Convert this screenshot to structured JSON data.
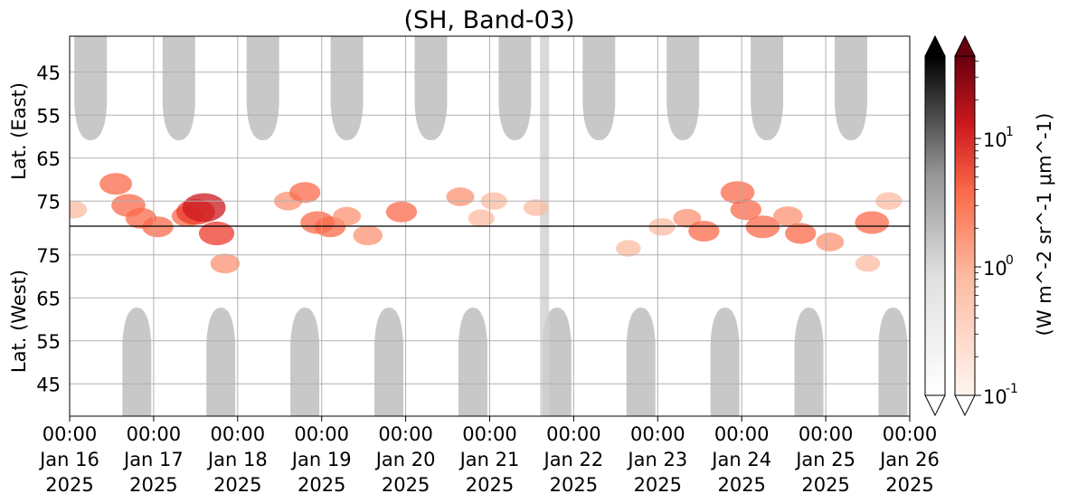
{
  "chart_data": {
    "type": "heatmap",
    "title": "(SH, Band-03)",
    "upper_panel": {
      "ylabel": "Lat. (East)",
      "yticks": [
        "45",
        "55",
        "65",
        "75"
      ]
    },
    "lower_panel": {
      "ylabel": "Lat. (West)",
      "yticks": [
        "75",
        "65",
        "55",
        "45"
      ]
    },
    "x_ticks": [
      {
        "time": "00:00",
        "date": "Jan 16",
        "year": "2025"
      },
      {
        "time": "00:00",
        "date": "Jan 17",
        "year": "2025"
      },
      {
        "time": "00:00",
        "date": "Jan 18",
        "year": "2025"
      },
      {
        "time": "00:00",
        "date": "Jan 19",
        "year": "2025"
      },
      {
        "time": "00:00",
        "date": "Jan 20",
        "year": "2025"
      },
      {
        "time": "00:00",
        "date": "Jan 21",
        "year": "2025"
      },
      {
        "time": "00:00",
        "date": "Jan 22",
        "year": "2025"
      },
      {
        "time": "00:00",
        "date": "Jan 23",
        "year": "2025"
      },
      {
        "time": "00:00",
        "date": "Jan 24",
        "year": "2025"
      },
      {
        "time": "00:00",
        "date": "Jan 25",
        "year": "2025"
      },
      {
        "time": "00:00",
        "date": "Jan 26",
        "year": "2025"
      }
    ],
    "x_range": [
      "2025-01-16 00:00",
      "2025-01-26 00:00"
    ],
    "grid": true,
    "colorbar": {
      "scale": "log",
      "ticks": [
        "10^1",
        "10^0",
        "10^-1"
      ],
      "label": "(W m^-2 sr^-1 μm^-1)",
      "cmaps": [
        "Greys",
        "Reds"
      ],
      "extend": "both"
    },
    "gray_day_regions": {
      "upper_days": [
        0.25,
        1.3,
        2.3,
        3.3,
        4.3,
        5.3,
        6.3,
        7.3,
        8.3,
        9.3
      ],
      "lower_days": [
        0.8,
        1.8,
        2.8,
        3.8,
        4.8,
        5.8,
        6.8,
        7.8,
        8.8,
        9.8
      ]
    },
    "red_features": [
      {
        "day": 0.05,
        "lat": 77,
        "panel": "east",
        "v": 0.3
      },
      {
        "day": 0.55,
        "lat": 71,
        "panel": "east",
        "v": 0.5
      },
      {
        "day": 0.7,
        "lat": 76,
        "panel": "east",
        "v": 0.55
      },
      {
        "day": 0.85,
        "lat": 79,
        "panel": "east",
        "v": 0.45
      },
      {
        "day": 1.05,
        "lat": 81,
        "panel": "east",
        "v": 0.45
      },
      {
        "day": 1.4,
        "lat": 84,
        "panel": "west",
        "v": 0.45
      },
      {
        "day": 1.5,
        "lat": 85,
        "panel": "west",
        "v": 0.7
      },
      {
        "day": 1.6,
        "lat": 86,
        "panel": "west",
        "v": 0.85
      },
      {
        "day": 1.75,
        "lat": 80,
        "panel": "west",
        "v": 0.6
      },
      {
        "day": 1.85,
        "lat": 73,
        "panel": "west",
        "v": 0.4
      },
      {
        "day": 2.6,
        "lat": 75,
        "panel": "east",
        "v": 0.35
      },
      {
        "day": 2.8,
        "lat": 73,
        "panel": "east",
        "v": 0.45
      },
      {
        "day": 2.95,
        "lat": 80,
        "panel": "east",
        "v": 0.55
      },
      {
        "day": 3.1,
        "lat": 81,
        "panel": "east",
        "v": 0.45
      },
      {
        "day": 3.3,
        "lat": 84,
        "panel": "west",
        "v": 0.35
      },
      {
        "day": 3.55,
        "lat": 83,
        "panel": "east",
        "v": 0.4
      },
      {
        "day": 3.95,
        "lat": 85,
        "panel": "west",
        "v": 0.45
      },
      {
        "day": 4.65,
        "lat": 74,
        "panel": "east",
        "v": 0.35
      },
      {
        "day": 4.9,
        "lat": 79,
        "panel": "east",
        "v": 0.3
      },
      {
        "day": 5.05,
        "lat": 75,
        "panel": "east",
        "v": 0.3
      },
      {
        "day": 5.55,
        "lat": 86,
        "panel": "west",
        "v": 0.25
      },
      {
        "day": 6.65,
        "lat": 86,
        "panel": "east",
        "v": 0.25
      },
      {
        "day": 7.05,
        "lat": 81,
        "panel": "east",
        "v": 0.3
      },
      {
        "day": 7.35,
        "lat": 79,
        "panel": "east",
        "v": 0.35
      },
      {
        "day": 7.55,
        "lat": 82,
        "panel": "east",
        "v": 0.45
      },
      {
        "day": 7.95,
        "lat": 73,
        "panel": "east",
        "v": 0.55
      },
      {
        "day": 8.05,
        "lat": 77,
        "panel": "east",
        "v": 0.45
      },
      {
        "day": 8.25,
        "lat": 81,
        "panel": "east",
        "v": 0.55
      },
      {
        "day": 8.55,
        "lat": 84,
        "panel": "west",
        "v": 0.4
      },
      {
        "day": 8.7,
        "lat": 80,
        "panel": "west",
        "v": 0.45
      },
      {
        "day": 9.05,
        "lat": 78,
        "panel": "west",
        "v": 0.35
      },
      {
        "day": 9.5,
        "lat": 73,
        "panel": "west",
        "v": 0.25
      },
      {
        "day": 9.55,
        "lat": 80,
        "panel": "east",
        "v": 0.55
      },
      {
        "day": 9.75,
        "lat": 75,
        "panel": "east",
        "v": 0.3
      }
    ]
  }
}
